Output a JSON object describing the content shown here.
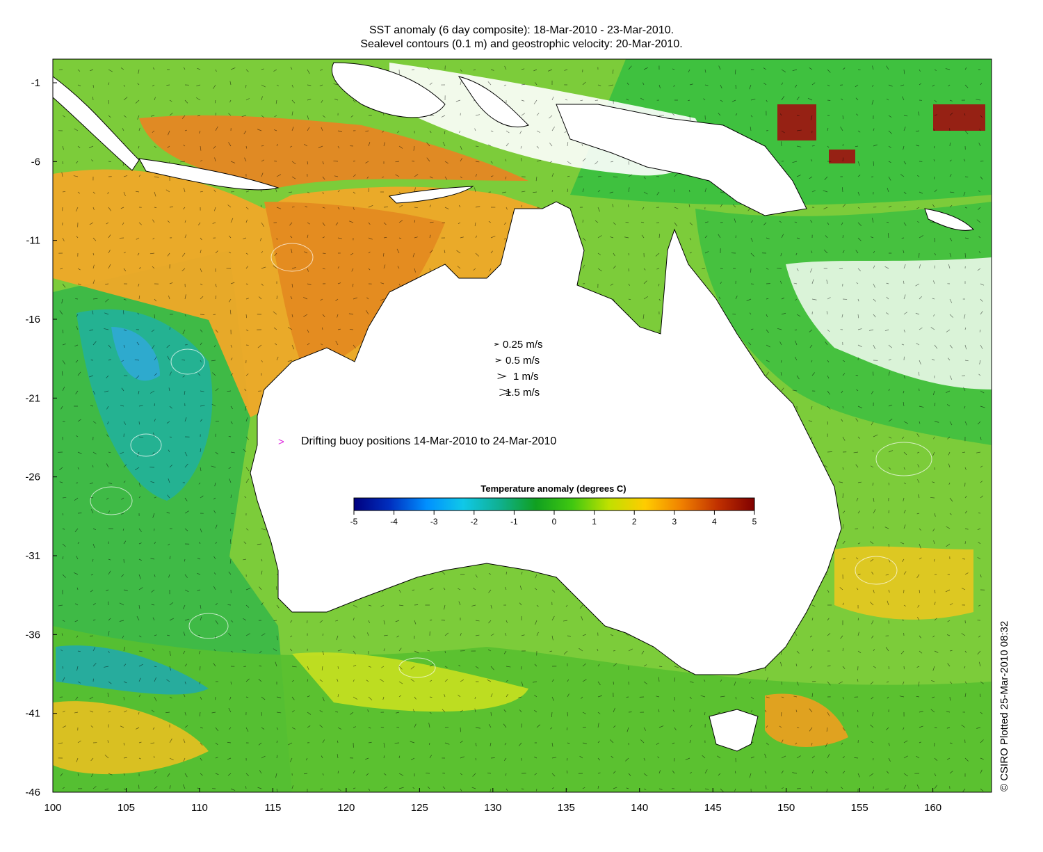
{
  "title_line1": "SST anomaly (6 day composite): 18-Mar-2010 - 23-Mar-2010.",
  "title_line2": "Sealevel contours (0.1 m) and geostrophic velocity: 20-Mar-2010.",
  "credit": "© CSIRO Plotted 25-Mar-2010 08:32",
  "map": {
    "lon_range": [
      100,
      164
    ],
    "lat_range": [
      -46,
      0.5
    ],
    "x_ticks": [
      {
        "value": 100,
        "label": "100"
      },
      {
        "value": 105,
        "label": "105"
      },
      {
        "value": 110,
        "label": "110"
      },
      {
        "value": 115,
        "label": "115"
      },
      {
        "value": 120,
        "label": "120"
      },
      {
        "value": 125,
        "label": "125"
      },
      {
        "value": 130,
        "label": "130"
      },
      {
        "value": 135,
        "label": "135"
      },
      {
        "value": 140,
        "label": "140"
      },
      {
        "value": 145,
        "label": "145"
      },
      {
        "value": 150,
        "label": "150"
      },
      {
        "value": 155,
        "label": "155"
      },
      {
        "value": 160,
        "label": "160"
      }
    ],
    "y_ticks": [
      {
        "value": -1,
        "label": "-1"
      },
      {
        "value": -6,
        "label": "-6"
      },
      {
        "value": -11,
        "label": "-11"
      },
      {
        "value": -16,
        "label": "-16"
      },
      {
        "value": -21,
        "label": "-21"
      },
      {
        "value": -26,
        "label": "-26"
      },
      {
        "value": -31,
        "label": "-31"
      },
      {
        "value": -36,
        "label": "-36"
      },
      {
        "value": -41,
        "label": "-41"
      },
      {
        "value": -46,
        "label": "-46"
      }
    ]
  },
  "velocity_legend": [
    {
      "speed": 0.25,
      "label": "0.25 m/s"
    },
    {
      "speed": 0.5,
      "label": "0.5 m/s"
    },
    {
      "speed": 1,
      "label": "1 m/s"
    },
    {
      "speed": 1.5,
      "label": "1.5 m/s"
    }
  ],
  "buoy_legend": {
    "label": "Drifting buoy positions 14-Mar-2010 to 24-Mar-2010",
    "color": "#dd22dd"
  },
  "colorbar": {
    "title": "Temperature anomaly (degrees C)",
    "range": [
      -5,
      5
    ],
    "ticks": [
      {
        "value": -5,
        "label": "-5"
      },
      {
        "value": -4,
        "label": "-4"
      },
      {
        "value": -3,
        "label": "-3"
      },
      {
        "value": -2,
        "label": "-2"
      },
      {
        "value": -1,
        "label": "-1"
      },
      {
        "value": 0,
        "label": "0"
      },
      {
        "value": 1,
        "label": "1"
      },
      {
        "value": 2,
        "label": "2"
      },
      {
        "value": 3,
        "label": "3"
      },
      {
        "value": 4,
        "label": "4"
      },
      {
        "value": 5,
        "label": "5"
      }
    ],
    "colors": [
      "#00007f",
      "#0030c0",
      "#0090ff",
      "#10c8e8",
      "#10b090",
      "#10a020",
      "#40c810",
      "#c0e000",
      "#ffcc00",
      "#f08000",
      "#c03000",
      "#800000"
    ]
  },
  "palette": {
    "land": "#ffffff",
    "warm_north": "#e8901c",
    "orange": "#f0a020",
    "yellow_green": "#c8e020",
    "green": "#30c030",
    "cyan_green": "#20b8a0",
    "blue_patch": "#30a0e0",
    "tropics_green": "#40c040",
    "red_patch": "#a01010"
  }
}
